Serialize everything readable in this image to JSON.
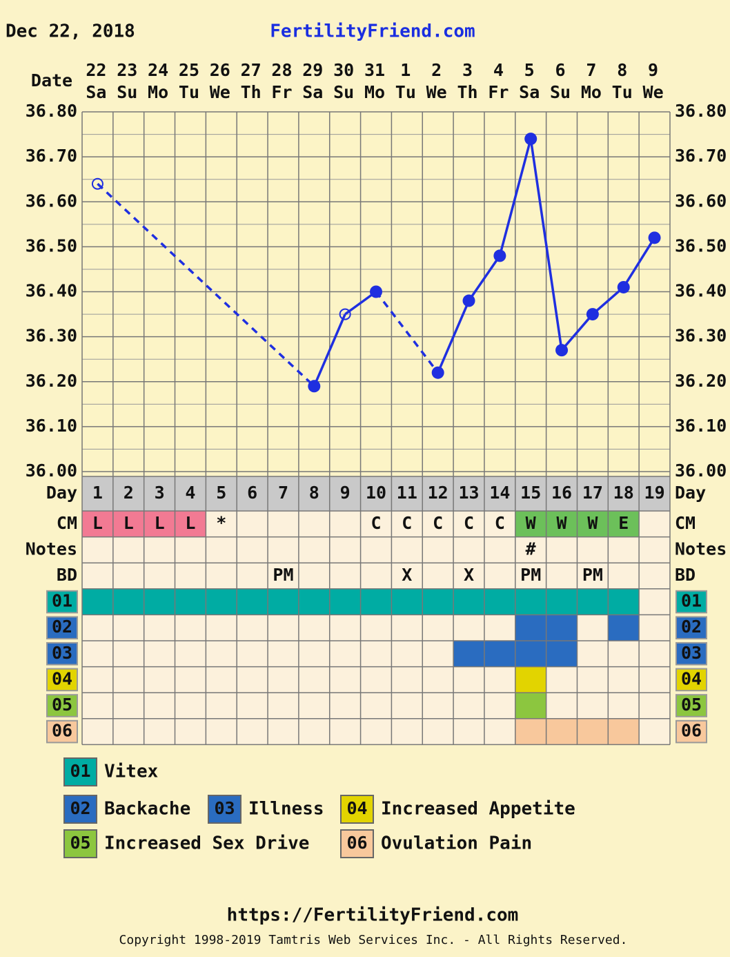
{
  "header": {
    "date": "Dec 22, 2018",
    "site": "FertilityFriend.com"
  },
  "chart_data": {
    "type": "line",
    "date_label": "Date",
    "day_label": "Day",
    "dates": [
      "22",
      "23",
      "24",
      "25",
      "26",
      "27",
      "28",
      "29",
      "30",
      "31",
      "1",
      "2",
      "3",
      "4",
      "5",
      "6",
      "7",
      "8",
      "9"
    ],
    "weekdays": [
      "Sa",
      "Su",
      "Mo",
      "Tu",
      "We",
      "Th",
      "Fr",
      "Sa",
      "Su",
      "Mo",
      "Tu",
      "We",
      "Th",
      "Fr",
      "Sa",
      "Su",
      "Mo",
      "Tu",
      "We"
    ],
    "categories": [
      "1",
      "2",
      "3",
      "4",
      "5",
      "6",
      "7",
      "8",
      "9",
      "10",
      "11",
      "12",
      "13",
      "14",
      "15",
      "16",
      "17",
      "18",
      "19"
    ],
    "values": [
      36.64,
      null,
      null,
      null,
      null,
      null,
      null,
      36.19,
      36.35,
      36.4,
      null,
      36.22,
      36.38,
      36.48,
      36.74,
      36.27,
      36.35,
      36.41,
      36.52
    ],
    "markers": [
      "open",
      null,
      null,
      null,
      null,
      null,
      null,
      "filled",
      "open",
      "filled",
      null,
      "filled",
      "filled",
      "filled",
      "filled",
      "filled",
      "filled",
      "filled",
      "filled"
    ],
    "color": "#1f2fe0",
    "ylim": [
      36.0,
      36.8
    ],
    "yticks": [
      {
        "value": 36.0,
        "label": "36.00"
      },
      {
        "value": 36.1,
        "label": "36.10"
      },
      {
        "value": 36.2,
        "label": "36.20"
      },
      {
        "value": 36.3,
        "label": "36.30"
      },
      {
        "value": 36.4,
        "label": "36.40"
      },
      {
        "value": 36.5,
        "label": "36.50"
      },
      {
        "value": 36.6,
        "label": "36.60"
      },
      {
        "value": 36.7,
        "label": "36.70"
      },
      {
        "value": 36.8,
        "label": "36.80"
      }
    ],
    "grid": true,
    "minor_grid": true,
    "rows": [
      {
        "label": "CM",
        "values": [
          "L",
          "L",
          "L",
          "L",
          "*",
          null,
          null,
          null,
          null,
          "C",
          "C",
          "C",
          "C",
          "C",
          "W",
          "W",
          "W",
          "E",
          null
        ],
        "colors": {
          "L": "#f27a93",
          "W": "#6cc05a",
          "E": "#6cc05a"
        }
      },
      {
        "label": "Notes",
        "values": [
          null,
          null,
          null,
          null,
          null,
          null,
          null,
          null,
          null,
          null,
          null,
          null,
          null,
          null,
          "#",
          null,
          null,
          null,
          null
        ]
      },
      {
        "label": "BD",
        "values": [
          null,
          null,
          null,
          null,
          null,
          null,
          "PM",
          null,
          null,
          null,
          "X",
          null,
          "X",
          null,
          "PM",
          null,
          "PM",
          null,
          null
        ]
      }
    ],
    "symptoms": [
      {
        "code": "01",
        "name": "Vitex",
        "color": "#00aca3",
        "days": [
          1,
          2,
          3,
          4,
          5,
          6,
          7,
          8,
          9,
          10,
          11,
          12,
          13,
          14,
          15,
          16,
          17,
          18
        ]
      },
      {
        "code": "02",
        "name": "Backache",
        "color": "#2a6cc0",
        "days": [
          15,
          16,
          18
        ]
      },
      {
        "code": "03",
        "name": "Illness",
        "color": "#2a6cc0",
        "days": [
          13,
          14,
          15,
          16
        ]
      },
      {
        "code": "04",
        "name": "Increased Appetite",
        "color": "#e2d400",
        "days": [
          15
        ]
      },
      {
        "code": "05",
        "name": "Increased Sex Drive",
        "color": "#8cc63f",
        "days": [
          15
        ]
      },
      {
        "code": "06",
        "name": "Ovulation Pain",
        "color": "#f8c89c",
        "days": [
          15,
          16,
          17,
          18
        ]
      }
    ]
  },
  "footer": {
    "url": "https://FertilityFriend.com",
    "copyright": "Copyright 1998-2019 Tamtris Web Services Inc. - All Rights Reserved."
  }
}
